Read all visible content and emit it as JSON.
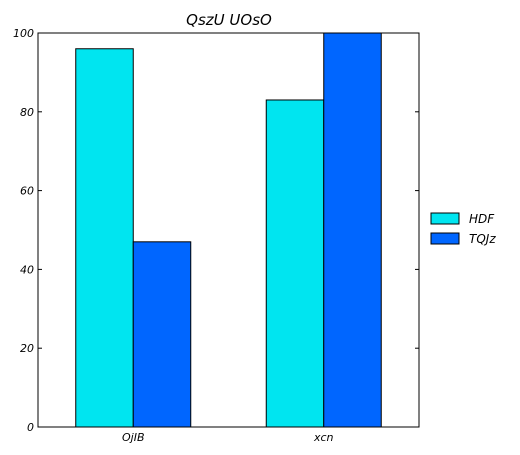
{
  "chart_data": {
    "type": "bar",
    "title": "QszU UOsO",
    "xlabel": "",
    "ylabel": "",
    "categories": [
      "OjIB",
      "xcn"
    ],
    "series": [
      {
        "name": "HDF",
        "values": [
          96,
          83
        ],
        "color": "#00e5f0"
      },
      {
        "name": "TQJz",
        "values": [
          47,
          100
        ],
        "color": "#0066ff"
      }
    ],
    "ylim": [
      0,
      100
    ],
    "yticks": [
      0,
      20,
      40,
      60,
      80,
      100
    ],
    "grid": false,
    "legend_position": "right"
  }
}
